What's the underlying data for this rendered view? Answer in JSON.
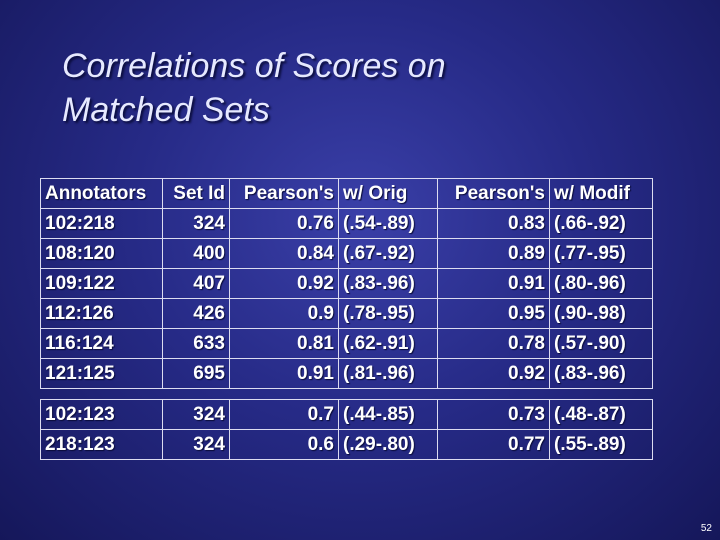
{
  "slide": {
    "title_line1": "Correlations of Scores on",
    "title_line2": "Matched Sets",
    "page_number": "52"
  },
  "table": {
    "headers": [
      "Annotators",
      "Set Id",
      "Pearson's",
      "w/ Orig",
      "Pearson's",
      "w/ Modif"
    ],
    "rows": [
      [
        "102:218",
        "324",
        "0.76",
        "(.54-.89)",
        "0.83",
        "(.66-.92)"
      ],
      [
        "108:120",
        "400",
        "0.84",
        "(.67-.92)",
        "0.89",
        "(.77-.95)"
      ],
      [
        "109:122",
        "407",
        "0.92",
        "(.83-.96)",
        "0.91",
        "(.80-.96)"
      ],
      [
        "112:126",
        "426",
        "0.9",
        "(.78-.95)",
        "0.95",
        "(.90-.98)"
      ],
      [
        "116:124",
        "633",
        "0.81",
        "(.62-.91)",
        "0.78",
        "(.57-.90)"
      ],
      [
        "121:125",
        "695",
        "0.91",
        "(.81-.96)",
        "0.92",
        "(.83-.96)"
      ]
    ]
  },
  "table2": {
    "rows": [
      [
        "102:123",
        "324",
        "0.7",
        "(.44-.85)",
        "0.73",
        "(.48-.87)"
      ],
      [
        "218:123",
        "324",
        "0.6",
        "(.29-.80)",
        "0.77",
        "(.55-.89)"
      ]
    ]
  }
}
